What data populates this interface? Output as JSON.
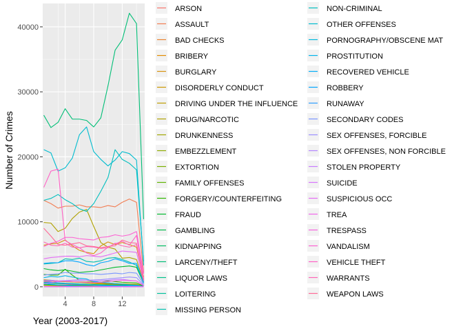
{
  "chart_data": {
    "type": "line",
    "title": "",
    "xlabel": "Year (2003-2017)",
    "ylabel": "Number of Crimes",
    "xlim": [
      0.85,
      15.15
    ],
    "ylim": [
      -1500,
      43600
    ],
    "x_ticks": [
      4,
      8,
      12
    ],
    "y_ticks": [
      0,
      10000,
      20000,
      30000,
      40000
    ],
    "x_tick_labels": [
      "4",
      "8",
      "12"
    ],
    "y_tick_labels": [
      "0",
      "10000",
      "20000",
      "30000",
      "40000"
    ],
    "grid": true,
    "legend_position": "right",
    "x": [
      1,
      2,
      3,
      4,
      5,
      6,
      7,
      8,
      9,
      10,
      11,
      12,
      13,
      14,
      15
    ],
    "series": [
      {
        "name": "ARSON",
        "color": "#F8766D",
        "values": [
          300,
          280,
          300,
          310,
          320,
          330,
          300,
          290,
          280,
          270,
          260,
          250,
          240,
          230,
          40
        ]
      },
      {
        "name": "ASSAULT",
        "color": "#F27D52",
        "values": [
          13300,
          12800,
          12100,
          12400,
          12400,
          12600,
          12300,
          12300,
          12200,
          12500,
          12300,
          13000,
          13500,
          13000,
          2200
        ]
      },
      {
        "name": "BAD CHECKS",
        "color": "#EA8331",
        "values": [
          60,
          70,
          80,
          90,
          70,
          60,
          50,
          40,
          40,
          30,
          30,
          30,
          30,
          30,
          5
        ]
      },
      {
        "name": "BRIBERY",
        "color": "#E18A00",
        "values": [
          80,
          100,
          120,
          150,
          200,
          180,
          200,
          250,
          270,
          260,
          300,
          330,
          200,
          100,
          20
        ]
      },
      {
        "name": "BURGLARY",
        "color": "#D7910E",
        "values": [
          6400,
          6600,
          6700,
          7200,
          6300,
          5600,
          5300,
          5100,
          6300,
          6900,
          6500,
          6800,
          6500,
          6100,
          1500
        ]
      },
      {
        "name": "DISORDERLY CONDUCT",
        "color": "#CB9700",
        "values": [
          1100,
          1000,
          900,
          850,
          750,
          700,
          600,
          500,
          450,
          400,
          400,
          400,
          350,
          300,
          60
        ]
      },
      {
        "name": "DRIVING UNDER THE INFLUENCE",
        "color": "#BE9C00",
        "values": [
          900,
          850,
          800,
          780,
          750,
          700,
          650,
          600,
          550,
          500,
          480,
          450,
          420,
          400,
          80
        ]
      },
      {
        "name": "DRUG/NARCOTIC",
        "color": "#B0A100",
        "values": [
          9900,
          9800,
          8500,
          9000,
          10500,
          11500,
          11900,
          9300,
          6800,
          6100,
          5800,
          4400,
          4500,
          4200,
          800
        ]
      },
      {
        "name": "DRUNKENNESS",
        "color": "#A0A600",
        "values": [
          1000,
          950,
          900,
          850,
          800,
          780,
          750,
          700,
          650,
          600,
          500,
          450,
          400,
          350,
          70
        ]
      },
      {
        "name": "EMBEZZLEMENT",
        "color": "#8EAB00",
        "values": [
          280,
          270,
          260,
          250,
          240,
          230,
          220,
          210,
          200,
          210,
          220,
          230,
          200,
          180,
          30
        ]
      },
      {
        "name": "EXTORTION",
        "color": "#79AF00",
        "values": [
          20,
          20,
          20,
          20,
          20,
          20,
          20,
          20,
          20,
          20,
          20,
          20,
          20,
          20,
          5
        ]
      },
      {
        "name": "FAMILY OFFENSES",
        "color": "#5EB300",
        "values": [
          250,
          240,
          230,
          220,
          210,
          200,
          190,
          180,
          170,
          160,
          150,
          140,
          130,
          120,
          20
        ]
      },
      {
        "name": "FORGERY/COUNTERFEITING",
        "color": "#2DB600",
        "values": [
          1900,
          1800,
          1800,
          2700,
          1800,
          1000,
          1000,
          800,
          700,
          900,
          800,
          700,
          650,
          600,
          100
        ]
      },
      {
        "name": "FRAUD",
        "color": "#00B92E",
        "values": [
          2800,
          2600,
          2500,
          2600,
          2400,
          2200,
          2300,
          2400,
          2600,
          2800,
          3000,
          3100,
          3200,
          3000,
          600
        ]
      },
      {
        "name": "GAMBLING",
        "color": "#00BB4B",
        "values": [
          40,
          30,
          30,
          30,
          20,
          20,
          20,
          20,
          10,
          10,
          10,
          10,
          10,
          10,
          2
        ]
      },
      {
        "name": "KIDNAPPING",
        "color": "#00BD62",
        "values": [
          600,
          550,
          500,
          450,
          420,
          400,
          380,
          350,
          330,
          300,
          280,
          260,
          250,
          240,
          40
        ]
      },
      {
        "name": "LARCENY/THEFT",
        "color": "#00BE76",
        "values": [
          26400,
          24500,
          25300,
          27400,
          25800,
          25800,
          25600,
          24600,
          26000,
          30900,
          36400,
          38000,
          42100,
          40500,
          10400
        ]
      },
      {
        "name": "LIQUOR LAWS",
        "color": "#00C089",
        "values": [
          700,
          650,
          600,
          550,
          500,
          450,
          400,
          300,
          250,
          200,
          150,
          100,
          100,
          100,
          20
        ]
      },
      {
        "name": "LOITERING",
        "color": "#00C09C",
        "values": [
          400,
          350,
          300,
          250,
          200,
          150,
          100,
          60,
          50,
          40,
          30,
          20,
          20,
          20,
          5
        ]
      },
      {
        "name": "MISSING PERSON",
        "color": "#00C0AE",
        "values": [
          3500,
          3600,
          3700,
          4300,
          4200,
          4400,
          3900,
          3800,
          4000,
          4400,
          4500,
          4200,
          3800,
          3300,
          800
        ]
      },
      {
        "name": "NON-CRIMINAL",
        "color": "#00BFBF",
        "values": [
          13300,
          13600,
          14200,
          13400,
          12800,
          12000,
          11600,
          12800,
          14700,
          16800,
          21100,
          19600,
          19000,
          18000,
          3900
        ]
      },
      {
        "name": "OTHER OFFENSES",
        "color": "#00BCCF",
        "values": [
          21100,
          20600,
          17800,
          18300,
          19800,
          23400,
          24600,
          20800,
          19600,
          18600,
          19500,
          20800,
          20500,
          19500,
          3300
        ]
      },
      {
        "name": "PORNOGRAPHY/OBSCENE MAT",
        "color": "#00B8DE",
        "values": [
          3,
          3,
          3,
          3,
          3,
          3,
          3,
          3,
          3,
          3,
          3,
          3,
          3,
          3,
          1
        ]
      },
      {
        "name": "PROSTITUTION",
        "color": "#00B3EB",
        "values": [
          1400,
          1600,
          1500,
          1700,
          1500,
          1300,
          1200,
          800,
          700,
          600,
          500,
          400,
          300,
          250,
          50
        ]
      },
      {
        "name": "RECOVERED VEHICLE",
        "color": "#00ACF7",
        "values": [
          600,
          400,
          250,
          200,
          100,
          80,
          60,
          50,
          70,
          90,
          100,
          90,
          80,
          70,
          10
        ]
      },
      {
        "name": "ROBBERY",
        "color": "#00A5FF",
        "values": [
          3600,
          3700,
          3700,
          4000,
          4000,
          3800,
          3400,
          3200,
          3700,
          3900,
          4300,
          4000,
          3600,
          3600,
          600
        ]
      },
      {
        "name": "RUNAWAY",
        "color": "#2C9DFF",
        "values": [
          800,
          700,
          600,
          500,
          400,
          350,
          300,
          250,
          200,
          180,
          160,
          150,
          140,
          130,
          20
        ]
      },
      {
        "name": "SECONDARY CODES",
        "color": "#7996FF",
        "values": [
          1800,
          1900,
          2000,
          2200,
          2100,
          2100,
          2000,
          2000,
          1900,
          2000,
          2100,
          2000,
          2200,
          2100,
          400
        ]
      },
      {
        "name": "SEX OFFENSES, FORCIBLE",
        "color": "#9A8FFF",
        "values": [
          1000,
          1000,
          900,
          950,
          1000,
          1000,
          1000,
          1050,
          1100,
          1200,
          1300,
          1400,
          1500,
          1400,
          250
        ]
      },
      {
        "name": "SEX OFFENSES, NON FORCIBLE",
        "color": "#B385FF",
        "values": [
          20,
          20,
          20,
          20,
          20,
          20,
          20,
          20,
          20,
          20,
          20,
          20,
          20,
          20,
          5
        ]
      },
      {
        "name": "STOLEN PROPERTY",
        "color": "#C77CFF",
        "values": [
          500,
          600,
          800,
          900,
          1000,
          1100,
          1000,
          900,
          950,
          1000,
          1100,
          1150,
          1000,
          900,
          150
        ]
      },
      {
        "name": "SUICIDE",
        "color": "#D774FD",
        "values": [
          50,
          50,
          50,
          50,
          50,
          50,
          50,
          50,
          40,
          40,
          40,
          40,
          40,
          40,
          10
        ]
      },
      {
        "name": "SUSPICIOUS OCC",
        "color": "#E46DF5",
        "values": [
          4300,
          4500,
          4600,
          4700,
          4700,
          4600,
          4800,
          4700,
          4600,
          4900,
          5200,
          5500,
          5400,
          5300,
          900
        ]
      },
      {
        "name": "TREA",
        "color": "#EF67EB",
        "values": [
          1,
          1,
          1,
          1,
          1,
          1,
          1,
          1,
          1,
          1,
          1,
          1,
          1,
          1,
          1
        ]
      },
      {
        "name": "TRESPASS",
        "color": "#F763E0",
        "values": [
          800,
          850,
          900,
          850,
          800,
          750,
          700,
          650,
          700,
          800,
          900,
          1000,
          950,
          900,
          200
        ]
      },
      {
        "name": "VANDALISM",
        "color": "#FD61D3",
        "values": [
          6200,
          6700,
          7000,
          7600,
          7600,
          7400,
          7300,
          7200,
          7600,
          7700,
          8000,
          7800,
          8000,
          8500,
          2000
        ]
      },
      {
        "name": "VEHICLE THEFT",
        "color": "#FF62C5",
        "values": [
          15300,
          17800,
          18100,
          7100,
          6500,
          6000,
          5200,
          4800,
          5200,
          6100,
          6600,
          7000,
          6400,
          7900,
          1200
        ]
      },
      {
        "name": "WARRANTS",
        "color": "#FF65B6",
        "values": [
          6900,
          6400,
          6300,
          6700,
          6100,
          6000,
          6200,
          6100,
          5900,
          6000,
          6700,
          6300,
          6100,
          6500,
          1100
        ]
      },
      {
        "name": "WEAPON LAWS",
        "color": "#FF6A98",
        "values": [
          9000,
          7800,
          6500,
          6400,
          6600,
          6800,
          6300,
          6200,
          6000,
          6200,
          6300,
          7200,
          6800,
          6700,
          1000
        ]
      }
    ]
  }
}
